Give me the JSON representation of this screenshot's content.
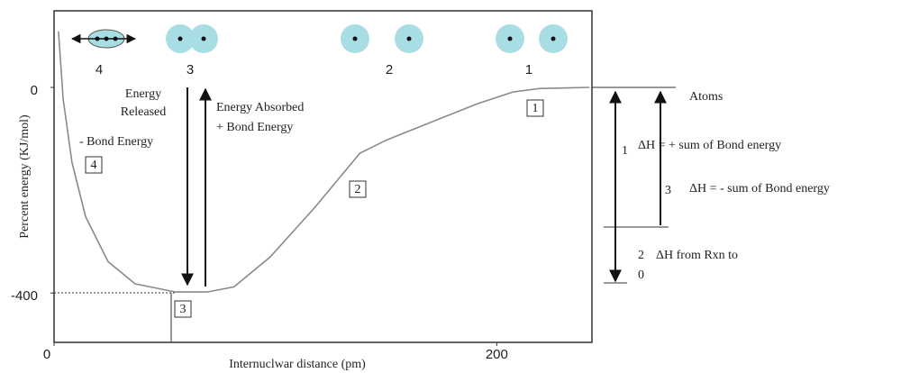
{
  "chart_data": {
    "type": "line",
    "ylabel": "Percent energy (KJ/mol)",
    "xlabel": "Internuclwar distance (pm)",
    "x": [
      2.0,
      4.1,
      8.1,
      14.2,
      24.4,
      36.6,
      54.9,
      69.1,
      81.3,
      97.6,
      117.9,
      138.2,
      150.4,
      170.7,
      191.1,
      207.3,
      219.5,
      241.9
    ],
    "values": [
      109,
      -23,
      -146,
      -251,
      -339,
      -382,
      -398,
      -398,
      -388,
      -330,
      -233,
      -128,
      -102,
      -67,
      -32,
      -9,
      -2,
      0
    ],
    "color": "#8a8a8a",
    "xlim": [
      0,
      243
    ],
    "ylim": [
      -496,
      149
    ],
    "xticks": [
      0,
      200
    ],
    "yticks": [
      -400,
      0
    ],
    "annotations": [
      "Energy",
      "Released",
      "- Bond Energy",
      "Energy Absorbed",
      "+ Bond Energy",
      "Atoms",
      "1",
      "ΔH = + sum of Bond energy",
      "3",
      "ΔH = - sum of Bond energy",
      "2",
      "0",
      "ΔH from Rxn to"
    ],
    "box_labels": [
      "1",
      "2",
      "3",
      "4"
    ],
    "atom_labels": [
      "4",
      "3",
      "2",
      "1"
    ]
  }
}
